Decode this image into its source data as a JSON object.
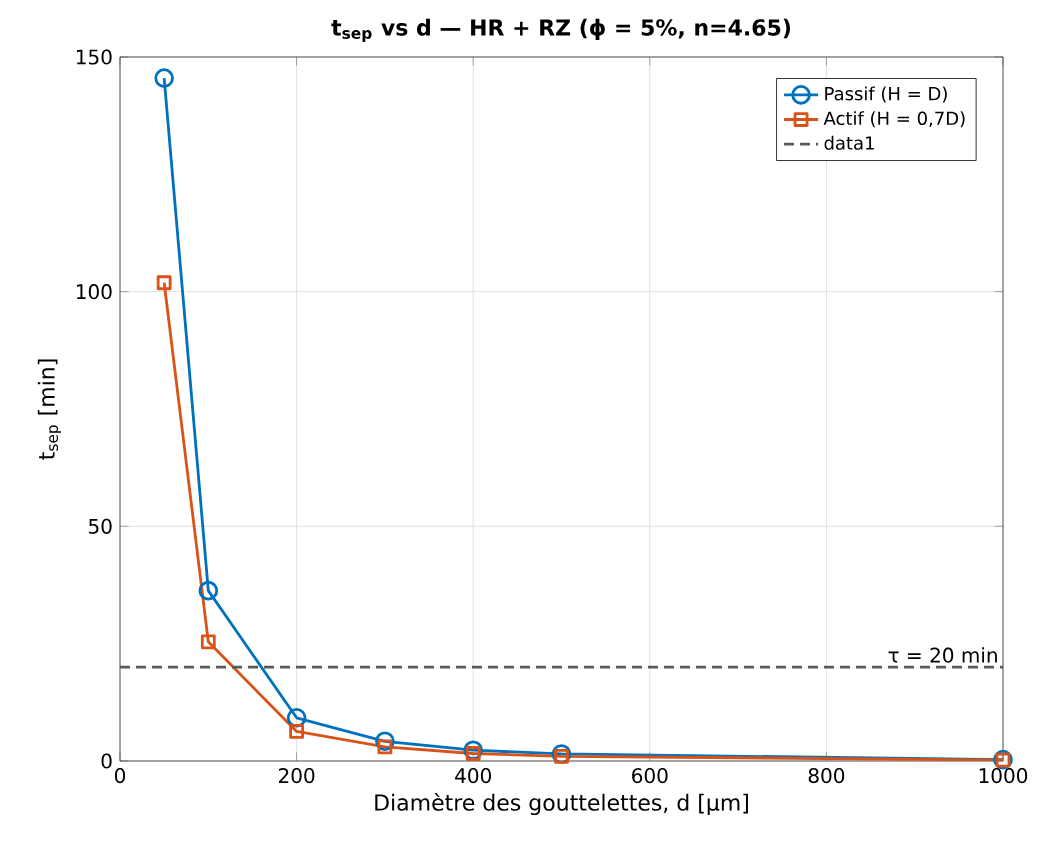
{
  "chart_data": {
    "type": "line",
    "title": "**t$_{sep}$ vs d — HR + RZ (ϕ = 5%, n=4.65)**",
    "xlabel": "Diamètre des gouttelettes, d [μm]",
    "ylabel": "t$_{sep}$ [min]",
    "xlim": [
      0,
      1000
    ],
    "ylim": [
      0,
      150
    ],
    "xticks": [
      0,
      200,
      400,
      600,
      800,
      1000
    ],
    "yticks": [
      0,
      50,
      100,
      150
    ],
    "grid": true,
    "legend": "top right",
    "series": [
      {
        "name": "Passif (H = D)",
        "color": "#0072bd",
        "marker": "circle",
        "line_style": "solid",
        "x": [
          50,
          100,
          200,
          300,
          400,
          500,
          1000
        ],
        "values": [
          145.5,
          36.3,
          9.2,
          4.2,
          2.3,
          1.5,
          0.3
        ]
      },
      {
        "name": "Actif (H = 0,7D)",
        "color": "#d95319",
        "marker": "square",
        "line_style": "solid",
        "x": [
          50,
          100,
          200,
          300,
          400,
          500,
          1000
        ],
        "values": [
          101.9,
          25.4,
          6.3,
          3.0,
          1.6,
          1.0,
          0.2
        ]
      },
      {
        "name": "data1",
        "color": "#595959",
        "marker": "none",
        "line_style": "dashed",
        "x": [
          0,
          1000
        ],
        "values": [
          20,
          20
        ]
      }
    ],
    "annotations": [
      {
        "text": "τ = 20 min",
        "x": 1000,
        "y": 20
      }
    ]
  }
}
